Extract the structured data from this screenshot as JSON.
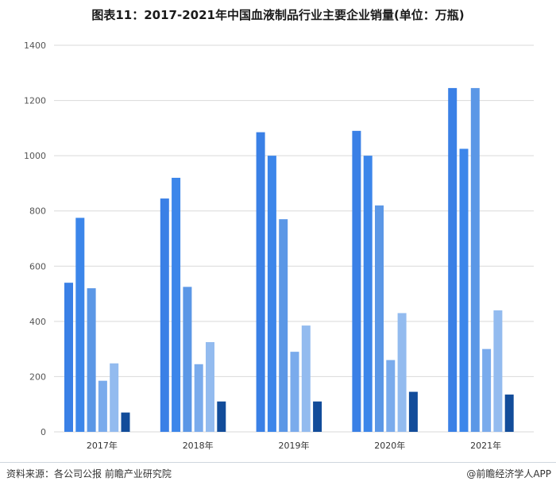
{
  "header": {
    "title": "图表11：2017-2021年中国血液制品行业主要企业销量(单位：万瓶)"
  },
  "footer": {
    "source": "资料来源：各公司公报 前瞻产业研究院",
    "brand": "@前瞻经济学人APP"
  },
  "colors": {
    "grid": "#d9d9d9",
    "bar_shades": [
      "#3a80e6",
      "#3c86ea",
      "#5b97e6",
      "#7aabec",
      "#93bbef",
      "#124c9a"
    ]
  },
  "chart_data": {
    "type": "bar",
    "title": "图表11：2017-2021年中国血液制品行业主要企业销量(单位：万瓶)",
    "xlabel": "",
    "ylabel": "",
    "ylim": [
      0,
      1400
    ],
    "yticks": [
      0,
      200,
      400,
      600,
      800,
      1000,
      1200,
      1400
    ],
    "grid": true,
    "legend": "none",
    "categories": [
      "2017年",
      "2018年",
      "2019年",
      "2020年",
      "2021年"
    ],
    "series": [
      {
        "values": [
          540,
          845,
          1085,
          1090,
          1245
        ]
      },
      {
        "values": [
          775,
          920,
          1000,
          1000,
          1025
        ]
      },
      {
        "values": [
          520,
          525,
          770,
          820,
          1245
        ]
      },
      {
        "values": [
          185,
          245,
          290,
          260,
          300
        ]
      },
      {
        "values": [
          248,
          325,
          385,
          430,
          440
        ]
      },
      {
        "values": [
          70,
          110,
          110,
          145,
          135
        ]
      }
    ]
  }
}
